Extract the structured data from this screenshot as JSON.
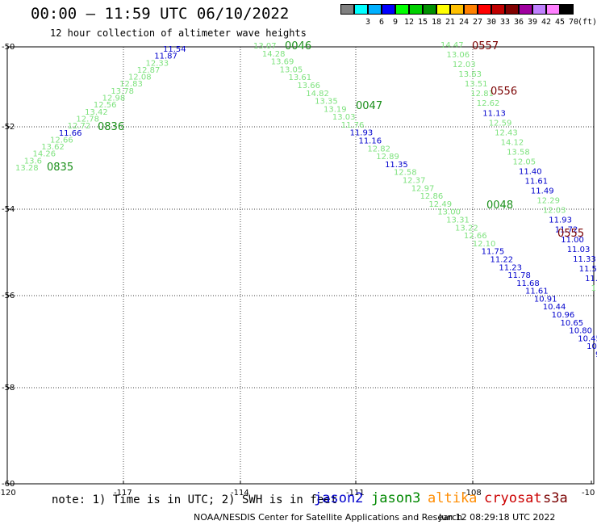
{
  "header": {
    "title": "00:00 – 11:59 UTC 06/10/2022",
    "subtitle": "12 hour collection of altimeter wave heights"
  },
  "legend": {
    "unit": "(ft)",
    "items": [
      {
        "label": "",
        "color": "#808080"
      },
      {
        "label": "3",
        "color": "#00ffff"
      },
      {
        "label": "6",
        "color": "#00b0ff"
      },
      {
        "label": "9",
        "color": "#0000ff"
      },
      {
        "label": "12",
        "color": "#00ff00"
      },
      {
        "label": "15",
        "color": "#00d000"
      },
      {
        "label": "18",
        "color": "#009000"
      },
      {
        "label": "21",
        "color": "#ffff00"
      },
      {
        "label": "24",
        "color": "#ffc000"
      },
      {
        "label": "27",
        "color": "#ff8000"
      },
      {
        "label": "30",
        "color": "#ff0000"
      },
      {
        "label": "33",
        "color": "#c00000"
      },
      {
        "label": "36",
        "color": "#800000"
      },
      {
        "label": "39",
        "color": "#a000a0"
      },
      {
        "label": "42",
        "color": "#c080ff"
      },
      {
        "label": "45",
        "color": "#ff80ff"
      },
      {
        "label": "70",
        "color": "#000000"
      }
    ]
  },
  "map": {
    "lon_ticks": [
      "-120",
      "-117",
      "-114",
      "-111",
      "-108",
      "-10"
    ],
    "lat_ticks": [
      "-50",
      "-52",
      "-54",
      "-56",
      "-58",
      "-60"
    ],
    "passes": [
      {
        "id": "p0835",
        "time": "0835",
        "color": "#1a8f1a",
        "value_color": "#7ee27e",
        "hi_color": "#0000cc",
        "values": [
          "13.28",
          "13.6",
          "14.26",
          "13.62",
          "12.66",
          "11.66",
          "12.72",
          "12.78",
          "13.42",
          "12.56",
          "12.98",
          "13.78",
          "12.83",
          "12.08",
          "12.87",
          "12.33",
          "11.87",
          "11.54"
        ],
        "hi_idx": [
          5,
          16,
          17
        ]
      },
      {
        "id": "p0046",
        "time": "0046",
        "color": "#1a8f1a",
        "value_color": "#7ee27e",
        "hi_color": "#0000cc",
        "values": [
          "13.07",
          "14.28",
          "13.69",
          "13.05",
          "13.61",
          "13.66",
          "14.82",
          "13.35",
          "13.19",
          "13.03",
          "11.76",
          "11.93",
          "11.16",
          "12.82",
          "12.89",
          "11.35",
          "12.58",
          "12.37",
          "12.97",
          "12.86",
          "12.49",
          "13.00",
          "13.31",
          "13.22",
          "12.66",
          "12.10",
          "11.75",
          "11.22",
          "11.23",
          "11.78",
          "11.68",
          "11.61",
          "10.91",
          "10.44",
          "10.96",
          "10.65",
          "10.80",
          "10.45",
          "10.",
          "9"
        ],
        "hi_idx": [
          11,
          12,
          15,
          26,
          27,
          28,
          29,
          30,
          31,
          32,
          33,
          34,
          35,
          36,
          37,
          38,
          39
        ]
      },
      {
        "id": "p0048",
        "time": "0048",
        "color": "#1a8f1a",
        "value_color": "#7ee27e",
        "hi_color": "#0000cc",
        "values": [
          "14.47",
          "13.06",
          "12.03",
          "13.63",
          "13.51",
          "12.81",
          "12.62",
          "11.13",
          "12.59",
          "12.43",
          "14.12",
          "13.58",
          "12.05",
          "11.40",
          "11.61",
          "11.49",
          "12.29",
          "12.03",
          "11.93",
          "11.72",
          "11.00",
          "11.03",
          "11.33",
          "11.59",
          "11.04",
          "11.33",
          "11.07"
        ],
        "hi_idx": [
          7,
          13,
          14,
          15,
          18,
          19,
          20,
          21,
          22,
          23,
          24,
          26
        ]
      },
      {
        "id": "p0047",
        "time": "0047",
        "color": "#1a8f1a"
      },
      {
        "id": "p0836",
        "time": "0836",
        "color": "#1a8f1a"
      },
      {
        "id": "p0557",
        "time": "0557",
        "color": "#7a0000"
      },
      {
        "id": "p0556",
        "time": "0556",
        "color": "#7a0000"
      },
      {
        "id": "p0555",
        "time": "0555",
        "color": "#7a0000"
      }
    ]
  },
  "note": "note: 1) Time is in UTC; 2) SWH is in feet",
  "satellites": [
    {
      "name": "jason2",
      "color": "#0000cc"
    },
    {
      "name": "jason3",
      "color": "#008800"
    },
    {
      "name": "altika",
      "color": "#ff8c00"
    },
    {
      "name": "cryosat",
      "color": "#cc0000"
    },
    {
      "name": "s3a",
      "color": "#7a0000"
    }
  ],
  "footer": {
    "credit": "NOAA/NESDIS Center for Satellite Applications and Research",
    "timestamp": "Jun 12 08:29:18 UTC 2022"
  }
}
